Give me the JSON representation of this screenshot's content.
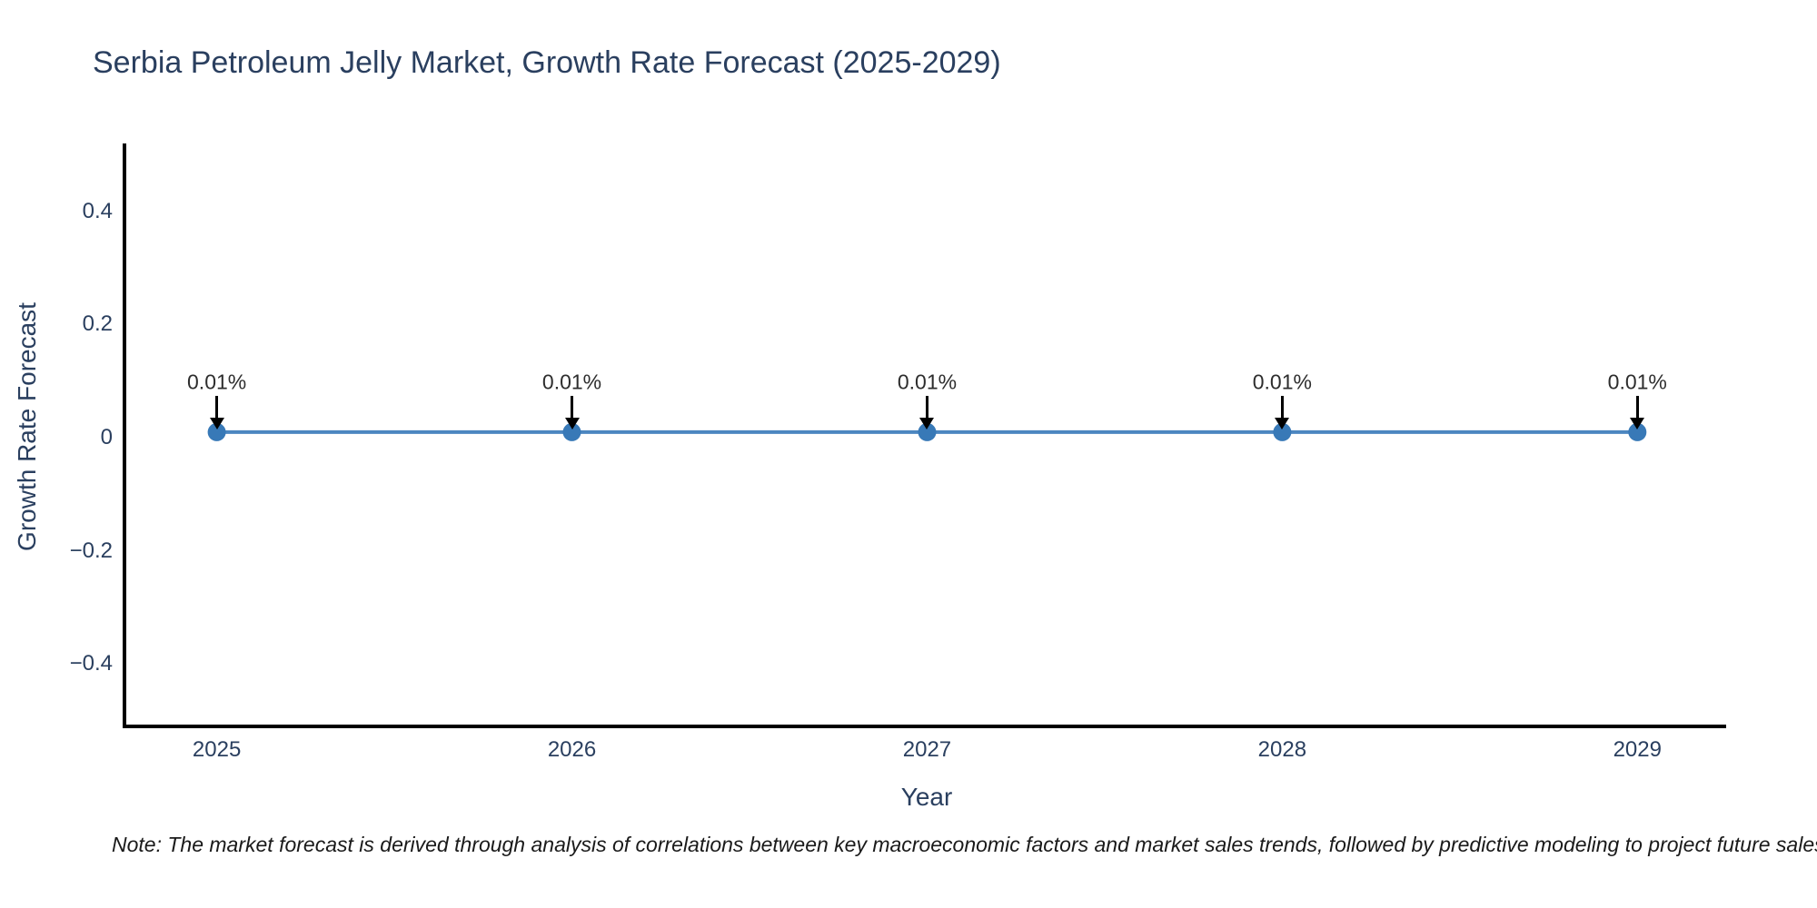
{
  "title": "Serbia Petroleum Jelly Market, Growth Rate Forecast (2025-2029)",
  "note": "Note: The market forecast is derived through analysis of correlations between key macroeconomic factors and market sales trends, followed by predictive modeling to project future sales",
  "chart_data": {
    "type": "line",
    "title": "Serbia Petroleum Jelly Market, Growth Rate Forecast (2025-2029)",
    "xlabel": "Year",
    "ylabel": "Growth Rate Forecast",
    "x": [
      2025,
      2026,
      2027,
      2028,
      2029
    ],
    "series": [
      {
        "name": "Growth Rate Forecast",
        "values": [
          0.01,
          0.01,
          0.01,
          0.01,
          0.01
        ],
        "point_labels": [
          "0.01%",
          "0.01%",
          "0.01%",
          "0.01%",
          "0.01%"
        ]
      }
    ],
    "xticks": {
      "values": [
        2025,
        2026,
        2027,
        2028,
        2029
      ],
      "labels": [
        "2025",
        "2026",
        "2027",
        "2028",
        "2029"
      ]
    },
    "yticks": {
      "values": [
        0.4,
        0.2,
        0,
        -0.2,
        -0.4
      ],
      "labels": [
        "0.4",
        "0.2",
        "0",
        "−0.2",
        "−0.4"
      ]
    },
    "xlim": [
      2024.74,
      2029.25
    ],
    "ylim": [
      -0.51,
      0.52
    ],
    "grid": false,
    "legend": "none",
    "colors": {
      "line": "#4c86c0",
      "marker": "#3879b7",
      "axis_line": "#000000",
      "text": "#2a3f5f",
      "annotation_text": "#2d2d2d",
      "annotation_arrow": "#000000",
      "background": "#ffffff"
    }
  }
}
